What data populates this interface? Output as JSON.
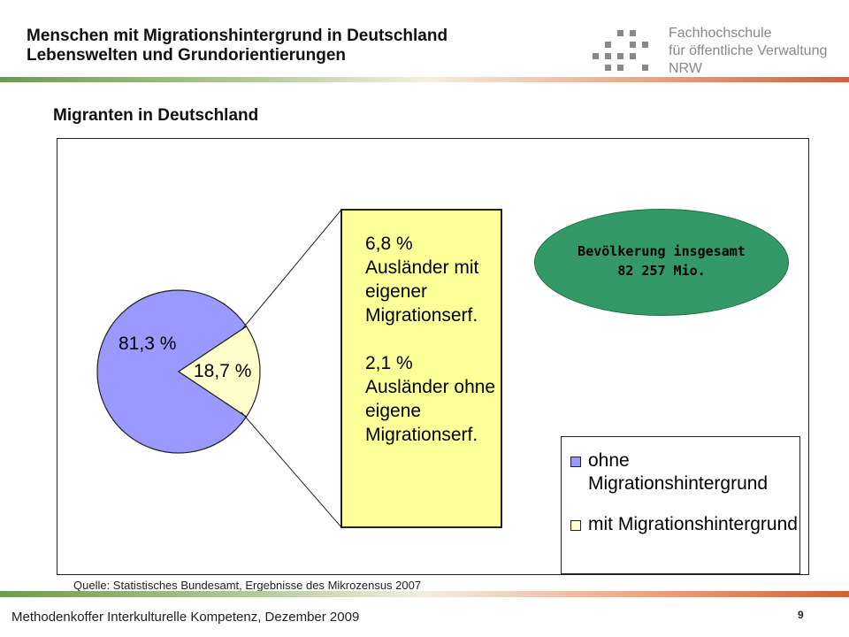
{
  "header": {
    "title_line1": "Menschen mit Migrationshintergrund in Deutschland",
    "title_line2": "Lebenswelten und Grundorientierungen"
  },
  "logo": {
    "line1": "Fachhochschule",
    "line2": "für öffentliche Verwaltung",
    "line3": "NRW"
  },
  "slide_title": "Migranten in Deutschland",
  "chart_data": {
    "type": "pie",
    "categories": [
      "ohne Migrationshintergrund",
      "mit Migrationshintergrund"
    ],
    "values": [
      81.3,
      18.7
    ],
    "data_labels": [
      "81,3 %",
      "18,7 %"
    ],
    "colors": [
      "#9999ff",
      "#ffffcc"
    ],
    "legend": [
      "ohne Migrationshintergrund",
      "mit Migrationshintergrund"
    ],
    "legend_position": "bottom-right",
    "breakdown": [
      {
        "value": "6,8 %",
        "line1": "Ausländer mit",
        "line2": "eigener",
        "line3": "Migrationserf."
      },
      {
        "value": "2,1 %",
        "line1": "Ausländer ohne",
        "line2": "eigene",
        "line3": "Migrationserf."
      }
    ],
    "total": {
      "line1": "Bevölkerung insgesamt",
      "line2": "82 257 Mio."
    }
  },
  "legend_labels": {
    "ohne_line1": "ohne",
    "ohne_line2": "Migrationshintergrund",
    "mit": "mit Migrationshintergrund"
  },
  "source": "Quelle: Statistisches Bundesamt, Ergebnisse des Mikrozensus 2007",
  "footer": "Methodenkoffer Interkulturelle Kompetenz, Dezember 2009",
  "page_number": "9",
  "colors": {
    "ellipse": "#339966",
    "callout": "#ffff99",
    "ohne": "#9999ff",
    "mit": "#ffffcc"
  }
}
